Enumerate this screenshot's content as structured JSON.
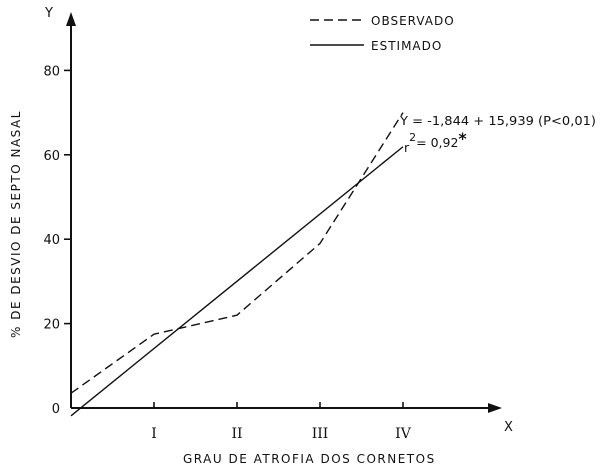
{
  "chart_data": {
    "type": "line",
    "title": "",
    "xlabel": "GRAU DE ATROFIA DOS CORNETOS",
    "ylabel": "% DE DESVIO DE SEPTO NASAL",
    "x_axis_letter": "X",
    "y_axis_letter": "Y",
    "x": [
      "I",
      "II",
      "III",
      "IV"
    ],
    "y_ticks": [
      "0",
      "20",
      "40",
      "60",
      "80"
    ],
    "ylim": [
      0,
      95
    ],
    "xlim": [
      0,
      4.3
    ],
    "legend_placement": "top-right",
    "grid": false,
    "series": [
      {
        "name": "OBSERVADO",
        "style": "dashed",
        "points": [
          [
            0,
            3.5
          ],
          [
            1,
            17.5
          ],
          [
            2,
            22
          ],
          [
            3,
            39
          ],
          [
            4,
            70
          ]
        ]
      },
      {
        "name": "ESTIMADO",
        "style": "solid",
        "points": [
          [
            0,
            -1.844
          ],
          [
            4,
            61.912
          ]
        ]
      }
    ],
    "annotations": [
      {
        "text": "Y = -1,844 + 15,939 (P<0,01)"
      },
      {
        "text": "r",
        "sup": "2",
        "rest": "= 0,92",
        "mark": "*"
      }
    ]
  }
}
